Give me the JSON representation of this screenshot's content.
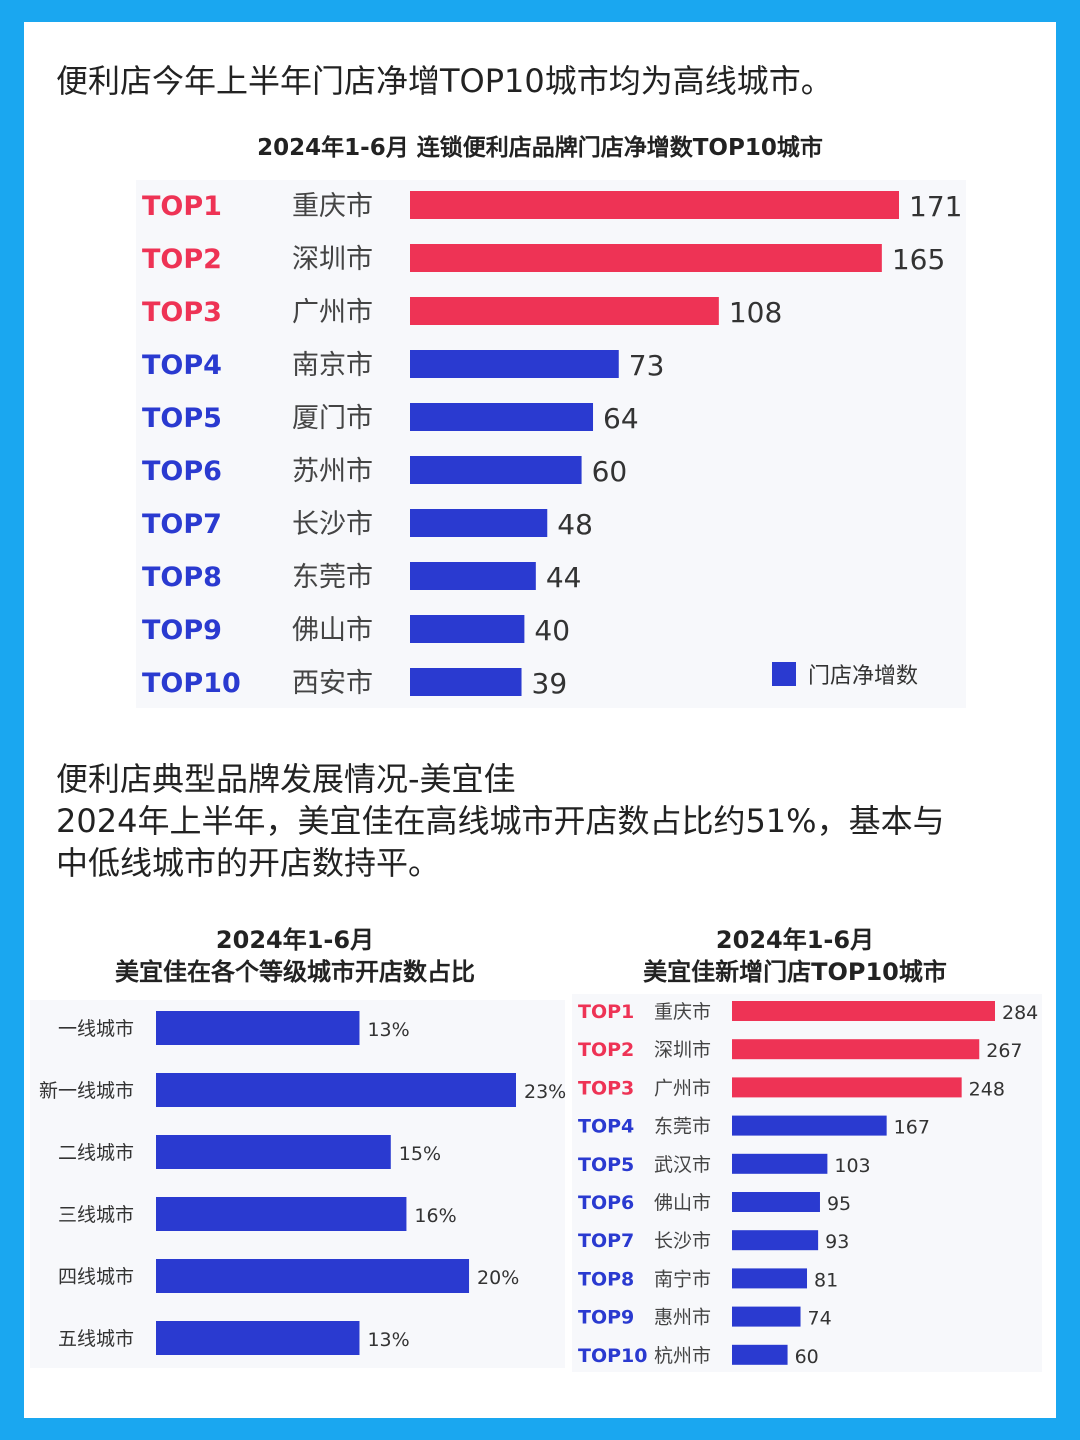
{
  "heading": "便利店今年上半年门店净增TOP10城市均为高线城市。",
  "paragraph": {
    "line1": "便利店典型品牌发展情况-美宜佳",
    "line2": "2024年上半年，美宜佳在高线城市开店数占比约51%，基本与",
    "line3": "中低线城市的开店数持平。"
  },
  "colors": {
    "highlight": "#ee3355",
    "primary": "#2a3ad0",
    "frame": "#1aa7f0"
  },
  "chart_data": [
    {
      "type": "bar",
      "orientation": "horizontal",
      "title": "2024年1-6月 连锁便利店品牌门店净增数TOP10城市",
      "ranks": [
        "TOP1",
        "TOP2",
        "TOP3",
        "TOP4",
        "TOP5",
        "TOP6",
        "TOP7",
        "TOP8",
        "TOP9",
        "TOP10"
      ],
      "categories": [
        "重庆市",
        "深圳市",
        "广州市",
        "南京市",
        "厦门市",
        "苏州市",
        "长沙市",
        "东莞市",
        "佛山市",
        "西安市"
      ],
      "series": [
        {
          "name": "门店净增数",
          "values": [
            171,
            165,
            108,
            73,
            64,
            60,
            48,
            44,
            40,
            39
          ]
        }
      ],
      "highlighted_count": 3,
      "legend": "bottom-right"
    },
    {
      "type": "bar",
      "orientation": "horizontal",
      "title_line1": "2024年1-6月",
      "title_line2": "美宜佳在各个等级城市开店数占比",
      "categories": [
        "一线城市",
        "新一线城市",
        "二线城市",
        "三线城市",
        "四线城市",
        "五线城市"
      ],
      "values": [
        13,
        23,
        15,
        16,
        20,
        13
      ],
      "value_labels": [
        "13%",
        "23%",
        "15%",
        "16%",
        "20%",
        "13%"
      ],
      "unit": "%"
    },
    {
      "type": "bar",
      "orientation": "horizontal",
      "title_line1": "2024年1-6月",
      "title_line2": "美宜佳新增门店TOP10城市",
      "ranks": [
        "TOP1",
        "TOP2",
        "TOP3",
        "TOP4",
        "TOP5",
        "TOP6",
        "TOP7",
        "TOP8",
        "TOP9",
        "TOP10"
      ],
      "categories": [
        "重庆市",
        "深圳市",
        "广州市",
        "东莞市",
        "武汉市",
        "佛山市",
        "长沙市",
        "南宁市",
        "惠州市",
        "杭州市"
      ],
      "values": [
        284,
        267,
        248,
        167,
        103,
        95,
        93,
        81,
        74,
        60
      ],
      "highlighted_count": 3
    }
  ]
}
